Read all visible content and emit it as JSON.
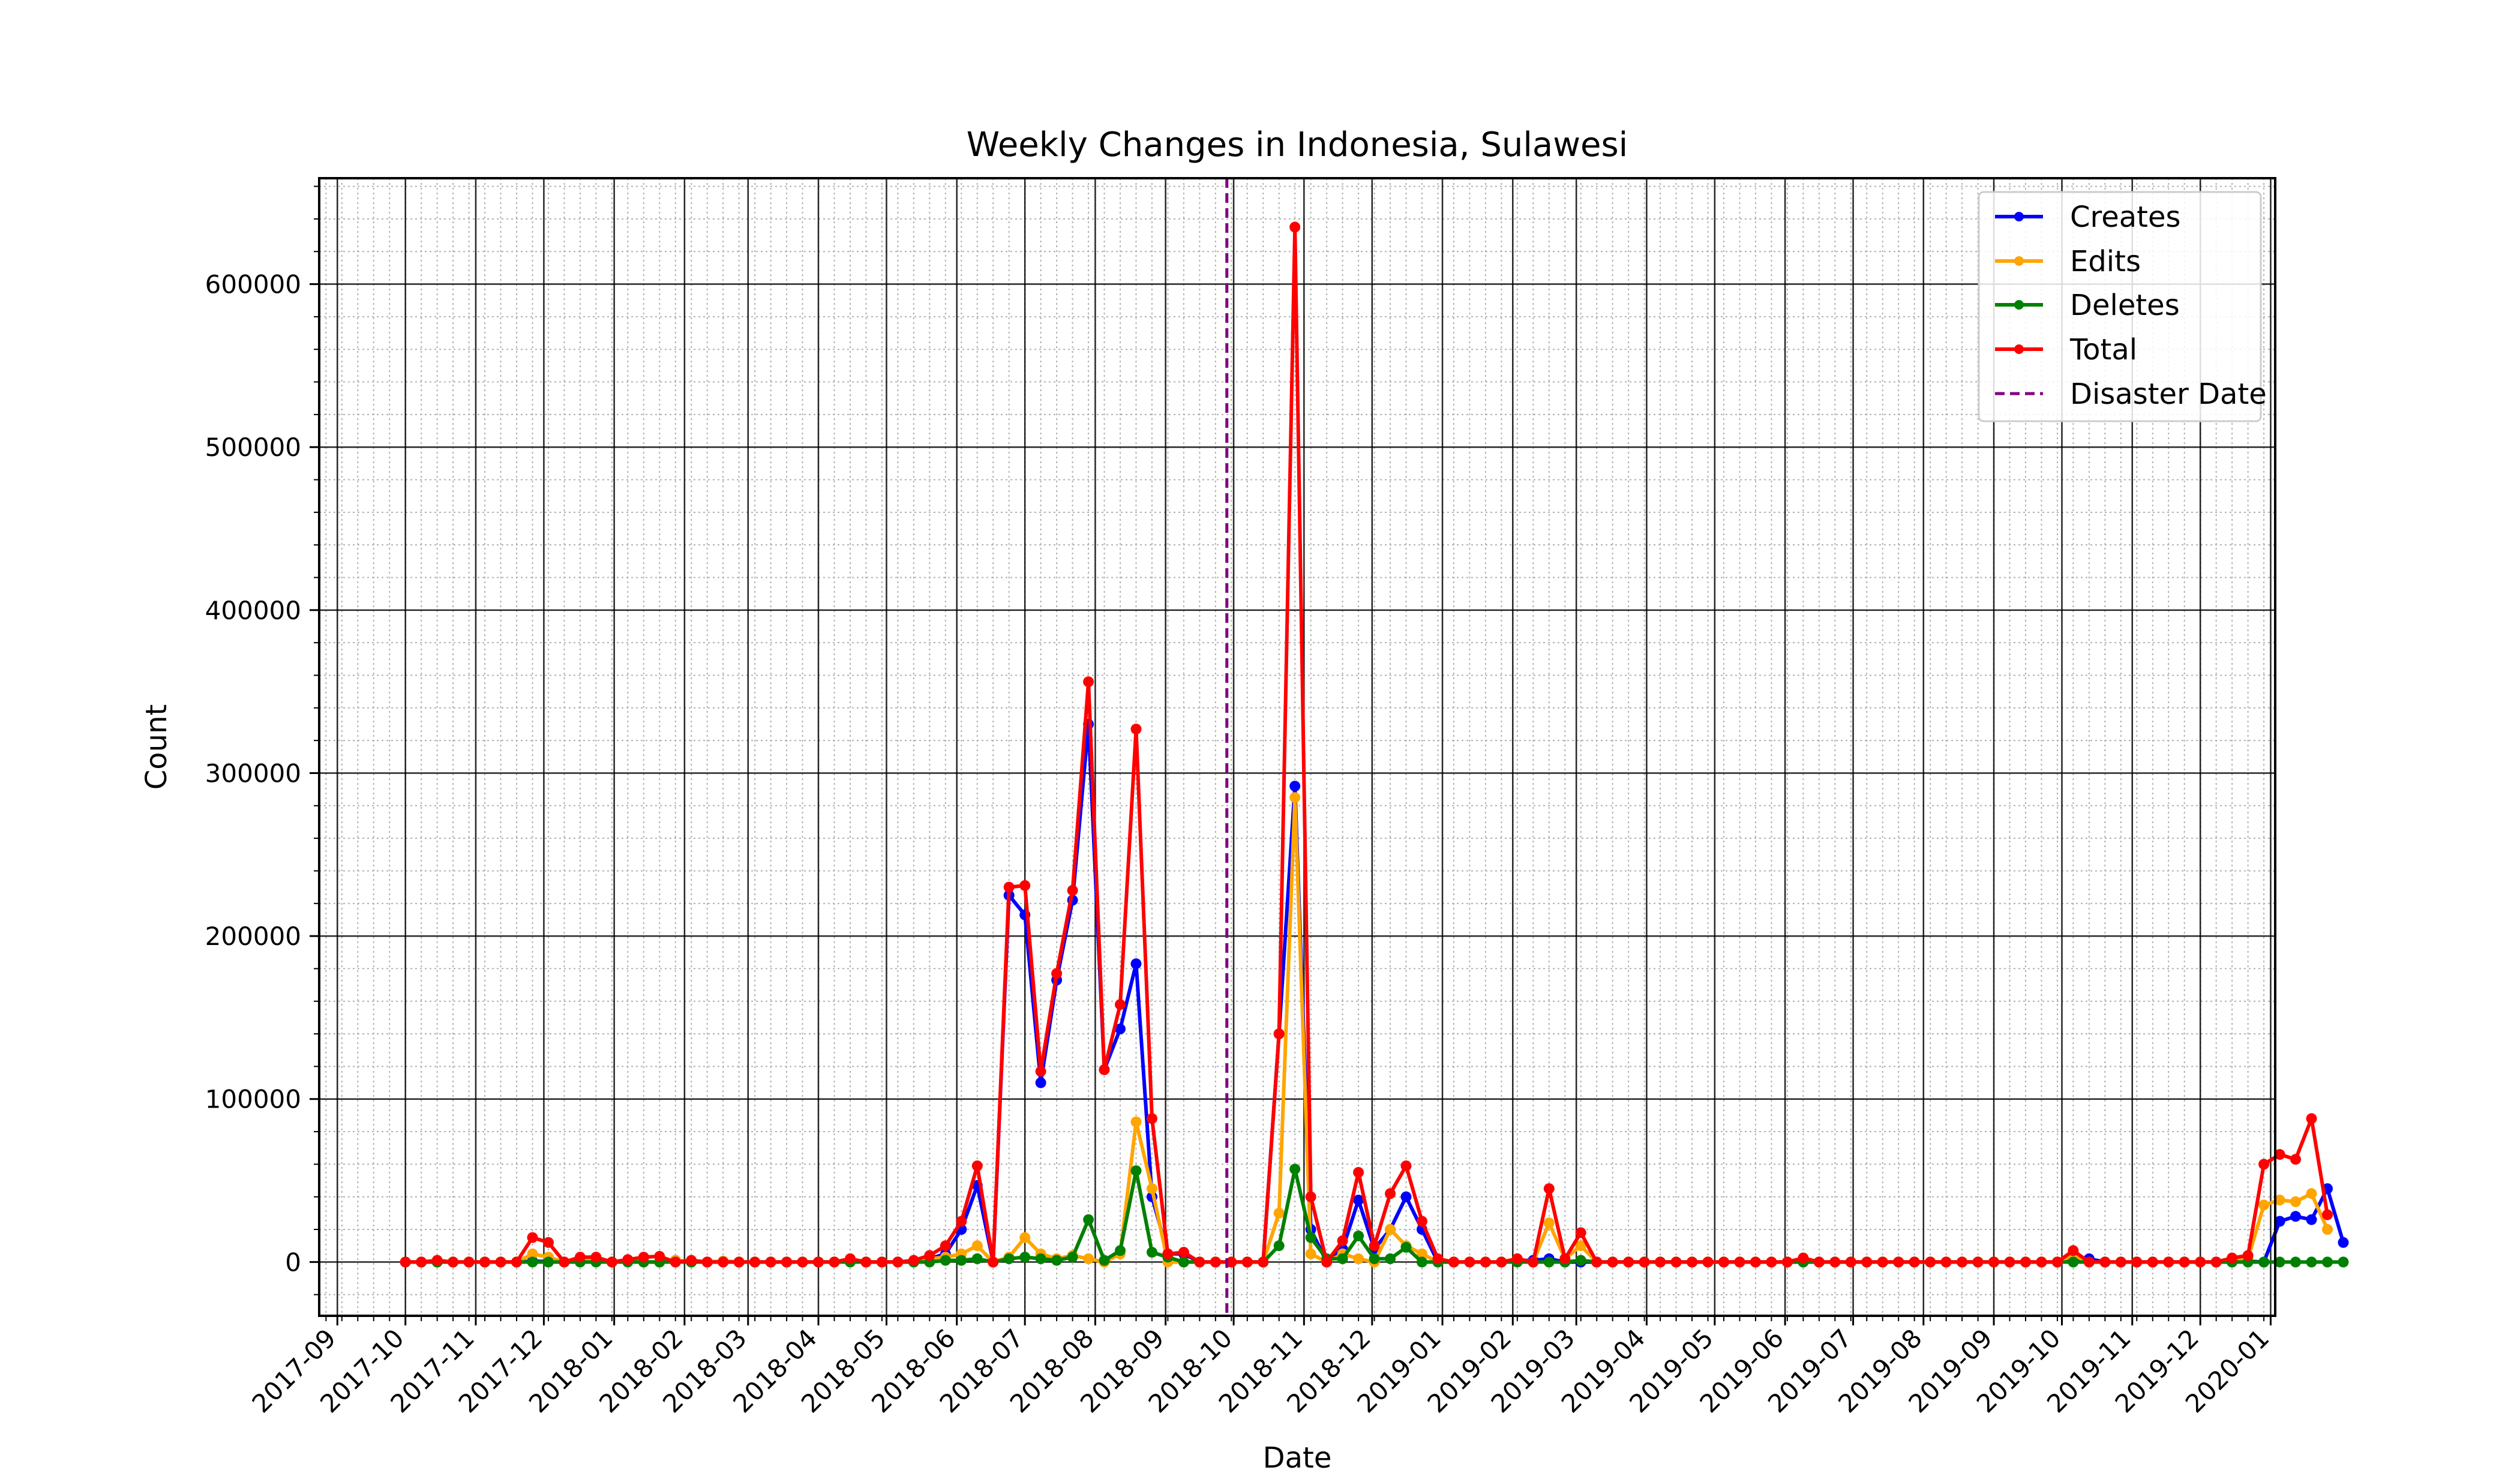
{
  "chart_data": {
    "type": "line",
    "title": "Weekly Changes in Indonesia, Sulawesi",
    "xlabel": "Date",
    "ylabel": "Count",
    "x_range": [
      "2017-08-24",
      "2020-01-03"
    ],
    "ylim": [
      -33000,
      665000
    ],
    "y_ticks": [
      0,
      100000,
      200000,
      300000,
      400000,
      500000,
      600000
    ],
    "x_ticks": [
      "2017-09",
      "2017-10",
      "2017-11",
      "2017-12",
      "2018-01",
      "2018-02",
      "2018-03",
      "2018-04",
      "2018-05",
      "2018-06",
      "2018-07",
      "2018-08",
      "2018-09",
      "2018-10",
      "2018-11",
      "2018-12",
      "2019-01",
      "2019-02",
      "2019-03",
      "2019-04",
      "2019-05",
      "2019-06",
      "2019-07",
      "2019-08",
      "2019-09",
      "2019-10",
      "2019-11",
      "2019-12",
      "2020-01"
    ],
    "grid": true,
    "legend_position": "top-right",
    "start_date": "2017-10-01",
    "week_days": 7,
    "series": [
      {
        "name": "Creates",
        "color": "#0000ff",
        "values": [
          0,
          0,
          0,
          0,
          0,
          0,
          0,
          0,
          500,
          300,
          0,
          1500,
          1000,
          0,
          1000,
          0,
          0,
          1000,
          0,
          0,
          500,
          0,
          0,
          0,
          0,
          0,
          0,
          0,
          1000,
          0,
          0,
          0,
          0,
          2000,
          5000,
          20000,
          47000,
          0,
          225000,
          213000,
          110000,
          173000,
          222000,
          330000,
          118000,
          143000,
          183000,
          40000,
          5000,
          5000,
          0,
          0,
          0,
          0,
          0,
          140000,
          292000,
          20000,
          0,
          8000,
          38000,
          8000,
          20000,
          40000,
          20000,
          0,
          0,
          0,
          0,
          0,
          1000,
          1000,
          2000,
          0,
          0,
          0,
          0,
          0,
          0,
          0,
          0,
          0,
          0,
          0,
          0,
          0,
          0,
          0,
          0,
          0,
          0,
          0,
          0,
          0,
          0,
          0,
          0,
          0,
          0,
          0,
          0,
          0,
          0,
          0,
          0,
          1000,
          2000,
          0,
          0,
          0,
          0,
          0,
          0,
          0,
          0,
          0,
          500,
          0,
          25000,
          28000,
          26000,
          45000,
          12000
        ]
      },
      {
        "name": "Edits",
        "color": "#ffa500",
        "values": [
          0,
          0,
          0,
          0,
          0,
          0,
          0,
          0,
          5000,
          3000,
          0,
          1500,
          1000,
          0,
          1000,
          0,
          0,
          1000,
          0,
          0,
          500,
          0,
          0,
          0,
          0,
          0,
          0,
          0,
          1000,
          0,
          0,
          0,
          0,
          2000,
          3000,
          5000,
          10000,
          0,
          3000,
          15000,
          5000,
          2000,
          4000,
          2000,
          0,
          5000,
          86000,
          45000,
          0,
          0,
          0,
          0,
          0,
          0,
          0,
          30000,
          285000,
          5000,
          0,
          5000,
          2000,
          0,
          20000,
          10000,
          5000,
          0,
          0,
          0,
          0,
          0,
          2000,
          0,
          24000,
          2000,
          10000,
          0,
          0,
          0,
          0,
          0,
          0,
          0,
          0,
          0,
          0,
          0,
          0,
          0,
          2000,
          0,
          0,
          0,
          0,
          0,
          0,
          0,
          0,
          0,
          0,
          0,
          0,
          0,
          0,
          0,
          0,
          4000,
          0,
          0,
          0,
          0,
          0,
          0,
          0,
          0,
          0,
          1000,
          2000,
          35000,
          38000,
          37000,
          42000,
          20000
        ]
      },
      {
        "name": "Deletes",
        "color": "#008000",
        "values": [
          0,
          0,
          0,
          0,
          0,
          0,
          0,
          0,
          0,
          0,
          0,
          0,
          0,
          0,
          0,
          0,
          0,
          0,
          0,
          0,
          0,
          0,
          0,
          0,
          0,
          0,
          0,
          0,
          0,
          0,
          0,
          0,
          0,
          0,
          1000,
          1000,
          2000,
          0,
          2000,
          3000,
          2000,
          1000,
          3000,
          26000,
          1000,
          7000,
          56000,
          6000,
          3000,
          0,
          0,
          0,
          0,
          0,
          0,
          10000,
          57000,
          15000,
          2000,
          2000,
          16000,
          2000,
          2000,
          9000,
          0,
          0,
          0,
          0,
          0,
          0,
          0,
          0,
          0,
          0,
          1000,
          0,
          0,
          0,
          0,
          0,
          0,
          0,
          0,
          0,
          0,
          0,
          0,
          0,
          0,
          0,
          0,
          0,
          0,
          0,
          0,
          0,
          0,
          0,
          0,
          0,
          0,
          0,
          0,
          0,
          0,
          0,
          0,
          0,
          0,
          0,
          0,
          0,
          0,
          0,
          0,
          0,
          0,
          0,
          0,
          0,
          0,
          0,
          0
        ]
      },
      {
        "name": "Total",
        "color": "#ff0000",
        "values": [
          0,
          0,
          1000,
          0,
          0,
          0,
          0,
          0,
          15000,
          12000,
          0,
          3000,
          3000,
          0,
          1500,
          3000,
          3500,
          0,
          1000,
          0,
          0,
          0,
          0,
          0,
          0,
          0,
          0,
          0,
          2000,
          0,
          0,
          0,
          1000,
          4000,
          10000,
          25000,
          59000,
          0,
          230000,
          231000,
          117000,
          177000,
          228000,
          356000,
          118000,
          158000,
          327000,
          88000,
          5000,
          6000,
          0,
          0,
          0,
          0,
          0,
          140000,
          635000,
          40000,
          0,
          13000,
          55000,
          10000,
          42000,
          59000,
          25000,
          2000,
          0,
          0,
          0,
          0,
          2000,
          0,
          45000,
          2000,
          18000,
          0,
          0,
          0,
          0,
          0,
          0,
          0,
          0,
          0,
          0,
          0,
          0,
          0,
          2500,
          0,
          0,
          0,
          0,
          0,
          0,
          0,
          0,
          0,
          0,
          0,
          0,
          0,
          0,
          0,
          0,
          7000,
          0,
          0,
          0,
          0,
          0,
          0,
          0,
          0,
          0,
          2500,
          4000,
          60000,
          66000,
          63000,
          88000,
          29000
        ]
      }
    ],
    "annotations": [
      {
        "name": "Disaster Date",
        "type": "vline",
        "x": "2018-09-28",
        "color": "#800080",
        "style": "dashed"
      }
    ]
  }
}
